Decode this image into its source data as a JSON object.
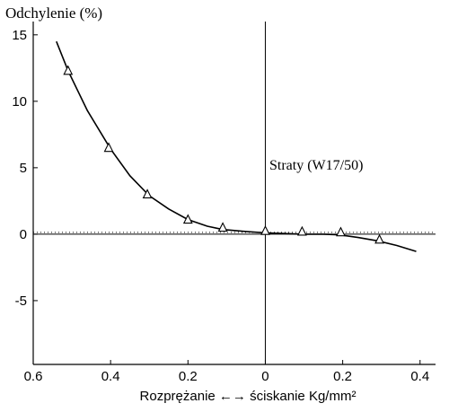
{
  "chart_data": {
    "type": "line",
    "ylabel": "Odchylenie (%)",
    "xlabel": "Rozprężanie ←→ ściskanie Kg/mm²",
    "annotation": "Straty (W17/50)",
    "x_tick_labels": [
      "0.6",
      "0.4",
      "0.2",
      "0",
      "0.2",
      "0.4"
    ],
    "x_ticks": [
      -0.6,
      -0.4,
      -0.2,
      0,
      0.2,
      0.4
    ],
    "y_ticks": [
      15,
      10,
      5,
      0,
      -5
    ],
    "y_tick_labels": [
      "15",
      "10",
      "5",
      "0",
      "-5"
    ],
    "xlim": [
      -0.6,
      0.44
    ],
    "ylim": [
      -9.8,
      16
    ],
    "grid": false,
    "legend": "none",
    "series": [
      {
        "curve": [
          [
            -0.54,
            14.5
          ],
          [
            -0.51,
            12.3
          ],
          [
            -0.46,
            9.3
          ],
          [
            -0.4,
            6.4
          ],
          [
            -0.35,
            4.4
          ],
          [
            -0.3,
            2.9
          ],
          [
            -0.25,
            1.9
          ],
          [
            -0.2,
            1.1
          ],
          [
            -0.15,
            0.6
          ],
          [
            -0.11,
            0.35
          ],
          [
            -0.05,
            0.2
          ],
          [
            0.0,
            0.1
          ],
          [
            0.05,
            0.05
          ],
          [
            0.1,
            0.0
          ],
          [
            0.15,
            0.0
          ],
          [
            0.19,
            -0.05
          ],
          [
            0.24,
            -0.25
          ],
          [
            0.29,
            -0.5
          ],
          [
            0.34,
            -0.85
          ],
          [
            0.39,
            -1.3
          ]
        ],
        "markers": [
          [
            -0.51,
            12.3
          ],
          [
            -0.405,
            6.5
          ],
          [
            -0.305,
            3.0
          ],
          [
            -0.2,
            1.1
          ],
          [
            -0.11,
            0.5
          ],
          [
            0.0,
            0.25
          ],
          [
            0.095,
            0.2
          ],
          [
            0.195,
            0.15
          ],
          [
            0.295,
            -0.4
          ]
        ],
        "marker": "triangle"
      }
    ]
  }
}
